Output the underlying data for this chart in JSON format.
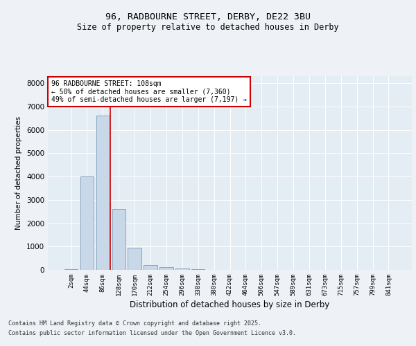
{
  "title_line1": "96, RADBOURNE STREET, DERBY, DE22 3BU",
  "title_line2": "Size of property relative to detached houses in Derby",
  "xlabel": "Distribution of detached houses by size in Derby",
  "ylabel": "Number of detached properties",
  "bar_categories": [
    "2sqm",
    "44sqm",
    "86sqm",
    "128sqm",
    "170sqm",
    "212sqm",
    "254sqm",
    "296sqm",
    "338sqm",
    "380sqm",
    "422sqm",
    "464sqm",
    "506sqm",
    "547sqm",
    "589sqm",
    "631sqm",
    "673sqm",
    "715sqm",
    "757sqm",
    "799sqm",
    "841sqm"
  ],
  "bar_values": [
    25,
    4000,
    6600,
    2600,
    950,
    200,
    120,
    60,
    25,
    5,
    0,
    0,
    0,
    0,
    0,
    0,
    0,
    0,
    0,
    0,
    0
  ],
  "bar_color": "#c8d8e8",
  "bar_edge_color": "#7a9cb8",
  "vline_color": "#cc0000",
  "annotation_text": "96 RADBOURNE STREET: 108sqm\n← 50% of detached houses are smaller (7,360)\n49% of semi-detached houses are larger (7,197) →",
  "annotation_box_color": "#ffffff",
  "annotation_box_edge": "#cc0000",
  "ylim": [
    0,
    8300
  ],
  "yticks": [
    0,
    1000,
    2000,
    3000,
    4000,
    5000,
    6000,
    7000,
    8000
  ],
  "footnote_line1": "Contains HM Land Registry data © Crown copyright and database right 2025.",
  "footnote_line2": "Contains public sector information licensed under the Open Government Licence v3.0.",
  "bg_color": "#eef2f6",
  "plot_bg_color": "#e4ecf4"
}
